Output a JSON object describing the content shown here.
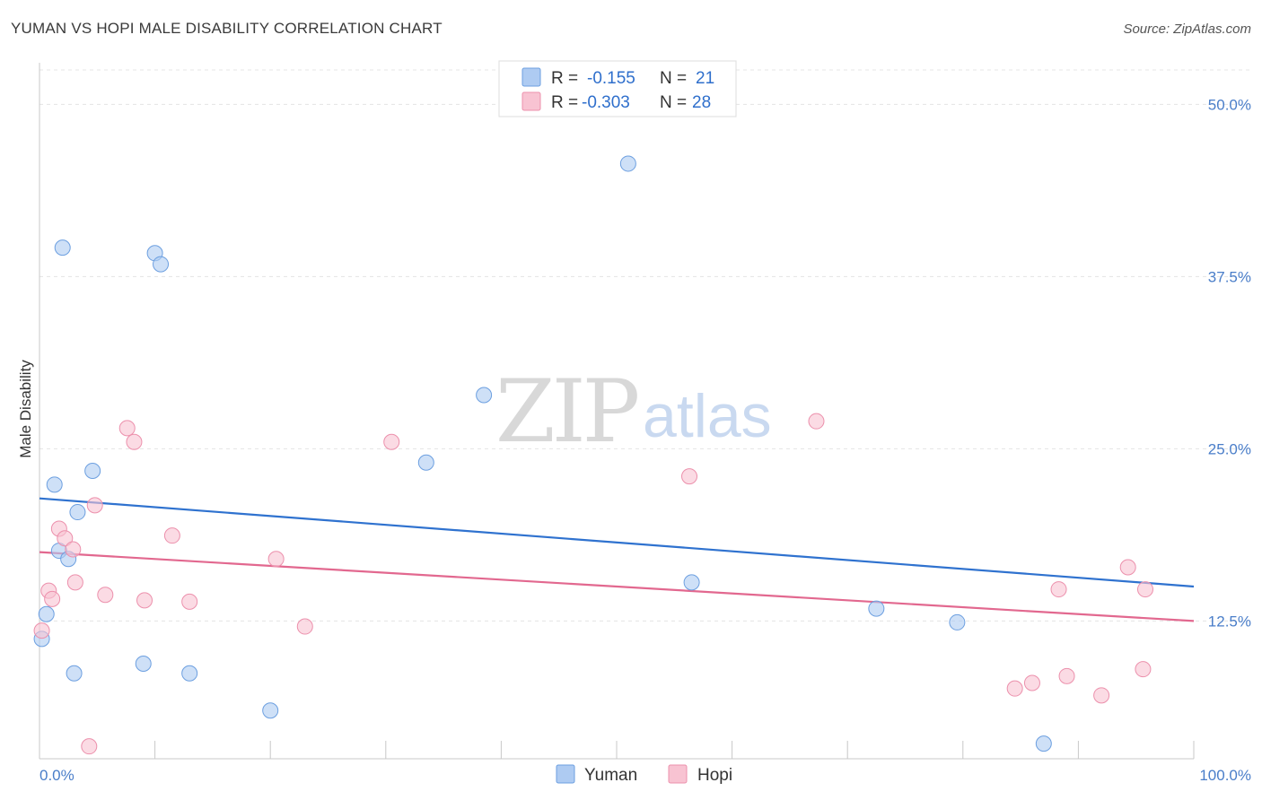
{
  "header": {
    "title": "YUMAN VS HOPI MALE DISABILITY CORRELATION CHART",
    "source": "Source: ZipAtlas.com"
  },
  "watermark": {
    "zip": "ZIP",
    "atlas": "atlas"
  },
  "chart_data": {
    "type": "scatter",
    "title": "YUMAN VS HOPI MALE DISABILITY CORRELATION CHART",
    "ylabel": "Male Disability",
    "xlim": [
      0,
      100
    ],
    "ylim": [
      2.5,
      52.5
    ],
    "x_tick_labels": {
      "left": "0.0%",
      "right": "100.0%"
    },
    "y_ticks": [
      {
        "value": 50.0,
        "label": "50.0%"
      },
      {
        "value": 37.5,
        "label": "37.5%"
      },
      {
        "value": 25.0,
        "label": "25.0%"
      },
      {
        "value": 12.5,
        "label": "12.5%"
      }
    ],
    "grid": "horizontal dashed",
    "legend_position": "top-center",
    "series": [
      {
        "name": "Yuman",
        "color": "#aecbf2",
        "stroke": "#6c9fe0",
        "line_color": "#2f72cf",
        "R": "-0.155",
        "N": "21",
        "trend": [
          [
            0,
            21.4
          ],
          [
            100,
            15.0
          ]
        ],
        "points": [
          [
            2.0,
            39.6
          ],
          [
            10.0,
            39.2
          ],
          [
            10.5,
            38.4
          ],
          [
            51.0,
            45.7
          ],
          [
            38.5,
            28.9
          ],
          [
            33.5,
            24.0
          ],
          [
            4.6,
            23.4
          ],
          [
            1.3,
            22.4
          ],
          [
            3.3,
            20.4
          ],
          [
            1.7,
            17.6
          ],
          [
            2.5,
            17.0
          ],
          [
            56.5,
            15.3
          ],
          [
            0.6,
            13.0
          ],
          [
            72.5,
            13.4
          ],
          [
            79.5,
            12.4
          ],
          [
            0.2,
            11.2
          ],
          [
            9.0,
            9.4
          ],
          [
            3.0,
            8.7
          ],
          [
            13.0,
            8.7
          ],
          [
            20.0,
            6.0
          ],
          [
            87.0,
            3.6
          ]
        ]
      },
      {
        "name": "Hopi",
        "color": "#f8c3d2",
        "stroke": "#ec90ac",
        "line_color": "#e2688f",
        "R": "-0.303",
        "N": "28",
        "trend": [
          [
            0,
            17.5
          ],
          [
            100,
            12.5
          ]
        ],
        "points": [
          [
            67.3,
            27.0
          ],
          [
            7.6,
            26.5
          ],
          [
            8.2,
            25.5
          ],
          [
            30.5,
            25.5
          ],
          [
            56.3,
            23.0
          ],
          [
            4.8,
            20.9
          ],
          [
            1.7,
            19.2
          ],
          [
            2.2,
            18.5
          ],
          [
            11.5,
            18.7
          ],
          [
            2.9,
            17.7
          ],
          [
            20.5,
            17.0
          ],
          [
            94.3,
            16.4
          ],
          [
            0.8,
            14.7
          ],
          [
            3.1,
            15.3
          ],
          [
            88.3,
            14.8
          ],
          [
            95.8,
            14.8
          ],
          [
            5.7,
            14.4
          ],
          [
            1.1,
            14.1
          ],
          [
            9.1,
            14.0
          ],
          [
            13.0,
            13.9
          ],
          [
            23.0,
            12.1
          ],
          [
            0.2,
            11.8
          ],
          [
            95.6,
            9.0
          ],
          [
            89.0,
            8.5
          ],
          [
            86.0,
            8.0
          ],
          [
            84.5,
            7.6
          ],
          [
            92.0,
            7.1
          ],
          [
            4.3,
            3.4
          ]
        ]
      }
    ]
  }
}
